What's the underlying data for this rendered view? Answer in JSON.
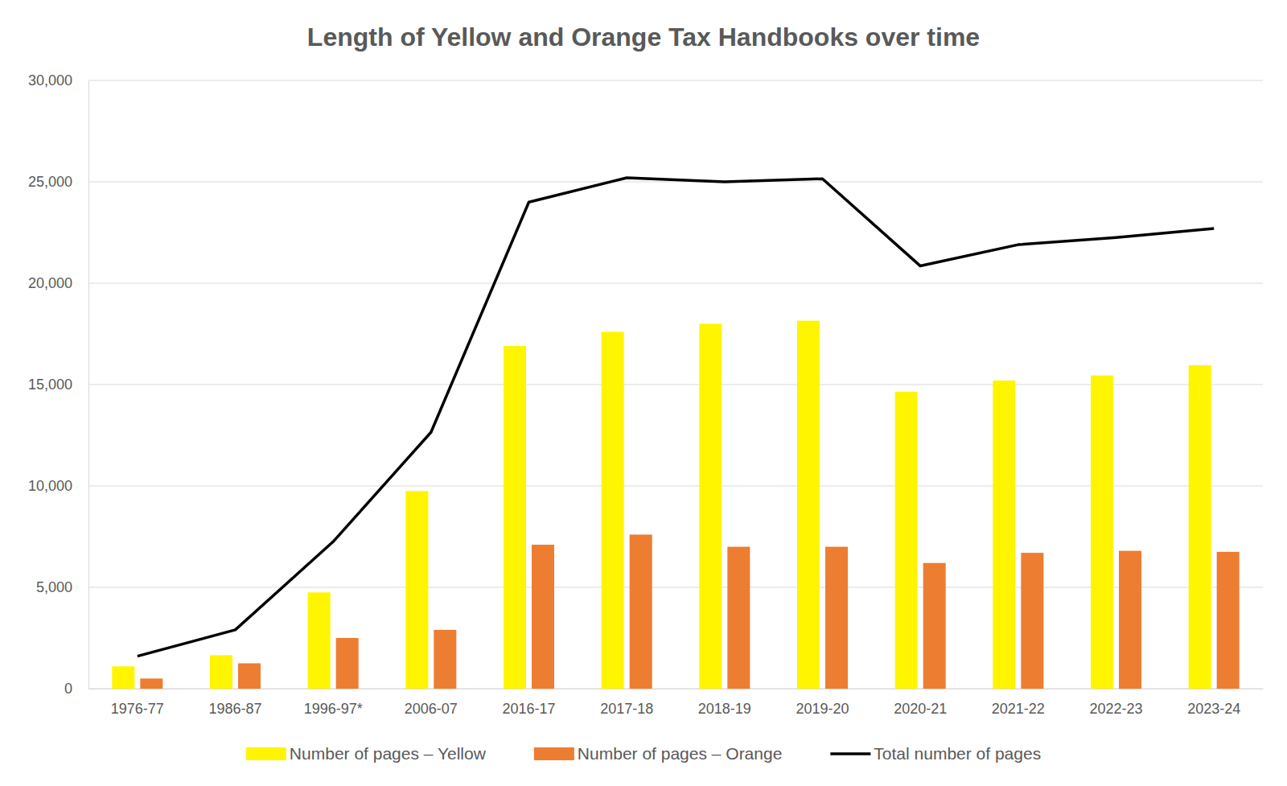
{
  "chart_data": {
    "type": "bar",
    "title": "Length of Yellow and Orange Tax Handbooks over time",
    "categories": [
      "1976-77",
      "1986-87",
      "1996-97*",
      "2006-07",
      "2016-17",
      "2017-18",
      "2018-19",
      "2019-20",
      "2020-21",
      "2021-22",
      "2022-23",
      "2023-24"
    ],
    "series": [
      {
        "name": "Number of pages – Yellow",
        "type": "bar",
        "color": "#fff500",
        "values": [
          1100,
          1650,
          4750,
          9750,
          16900,
          17600,
          18000,
          18150,
          14650,
          15200,
          15450,
          15950
        ]
      },
      {
        "name": "Number of pages – Orange",
        "type": "bar",
        "color": "#ed7d31",
        "values": [
          500,
          1250,
          2500,
          2900,
          7100,
          7600,
          7000,
          7000,
          6200,
          6700,
          6800,
          6750
        ]
      },
      {
        "name": "Total number of pages",
        "type": "line",
        "color": "#000000",
        "values": [
          1600,
          2900,
          7250,
          12650,
          24000,
          25200,
          25000,
          25150,
          20850,
          21900,
          22250,
          22700
        ]
      }
    ],
    "ylim": [
      0,
      30000
    ],
    "yticks": [
      0,
      {
        "value": 5000,
        "label": "5,000"
      },
      {
        "value": 10000,
        "label": "10,000"
      },
      {
        "value": 15000,
        "label": "15,000"
      },
      {
        "value": 20000,
        "label": "20,000"
      },
      {
        "value": 25000,
        "label": "25,000"
      },
      {
        "value": 30000,
        "label": "30,000"
      }
    ],
    "grid": true,
    "legend": "bottom"
  }
}
